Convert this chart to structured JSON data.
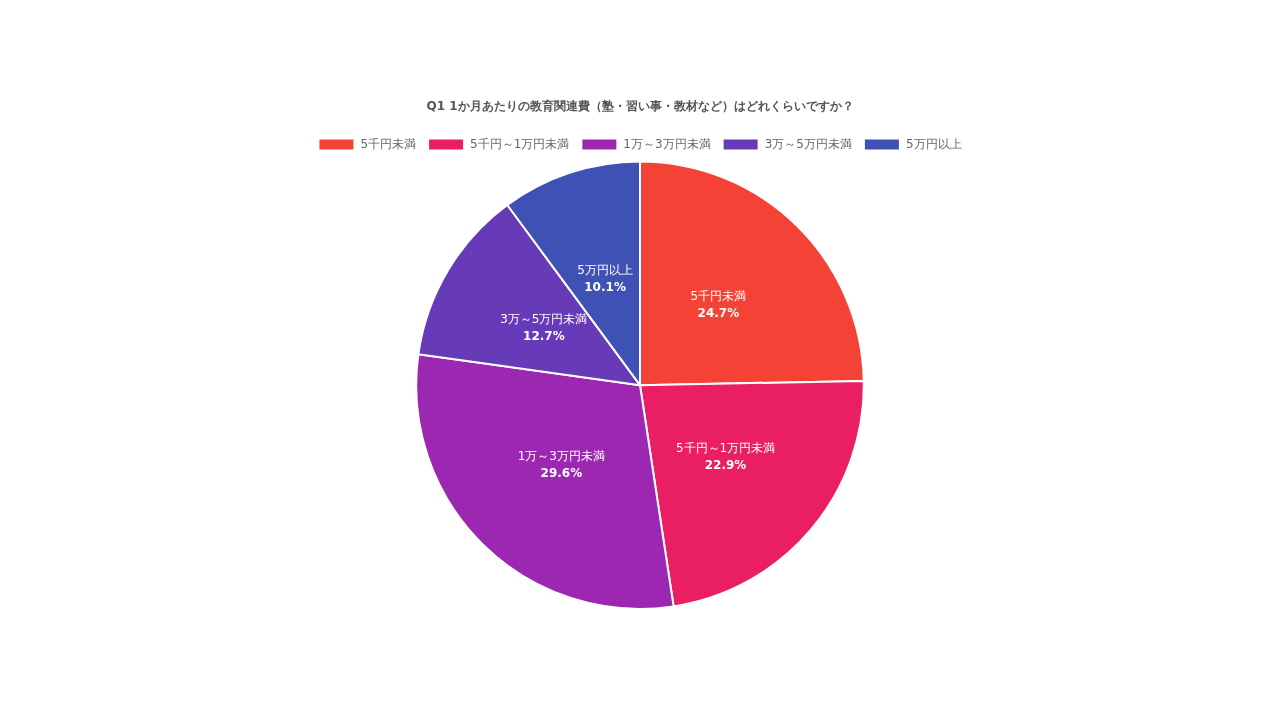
{
  "chart_data": {
    "type": "pie",
    "title": "Q1 1か月あたりの教育関連費（塾・習い事・教材など）はどれくらいですか？",
    "categories": [
      "5千円未満",
      "5千円～1万円未満",
      "1万～3万円未満",
      "3万～5万円未満",
      "5万円以上"
    ],
    "values": [
      24.7,
      22.9,
      29.6,
      12.7,
      10.1
    ],
    "value_labels": [
      "24.7%",
      "22.9%",
      "29.6%",
      "12.7%",
      "10.1%"
    ],
    "colors": [
      "#f44336",
      "#e91e63",
      "#9c27b0",
      "#673ab7",
      "#3f51b5"
    ],
    "legend": "top"
  }
}
